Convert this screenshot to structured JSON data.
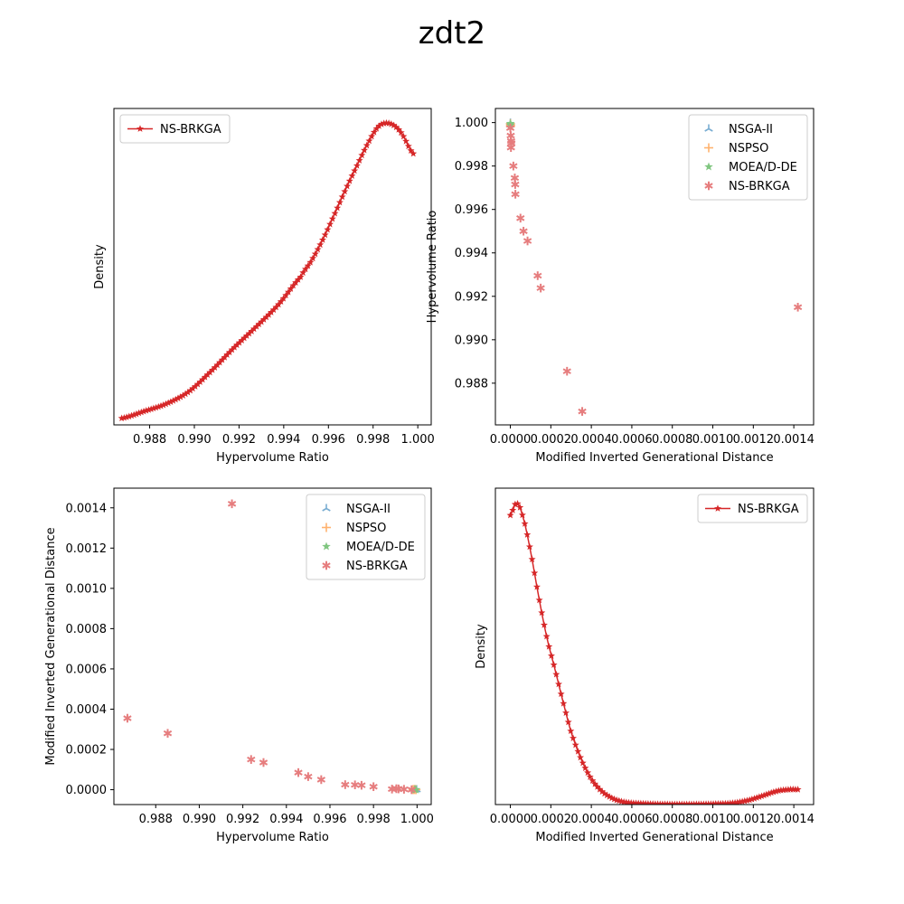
{
  "figure": {
    "title": "zdt2"
  },
  "colors": {
    "nsga2": "#1f77b4",
    "nspso": "#ff7f0e",
    "moead": "#2ca02c",
    "nsbrkga": "#d62728",
    "axis": "#000000",
    "legend_border": "#cccccc"
  },
  "chart_data": [
    {
      "type": "line",
      "panel": "top-left",
      "xlabel": "Hypervolume Ratio",
      "ylabel": "Density",
      "xlim": [
        0.9864,
        1.0006
      ],
      "ylim": [
        0,
        1.05
      ],
      "xticks": [
        0.988,
        0.99,
        0.992,
        0.994,
        0.996,
        0.998,
        1.0
      ],
      "xtick_labels": [
        "0.988",
        "0.990",
        "0.992",
        "0.994",
        "0.996",
        "0.998",
        "1.000"
      ],
      "show_yticks": false,
      "legend": {
        "loc": "upper left",
        "entries": [
          "NS-BRKGA"
        ]
      },
      "series": [
        {
          "name": "NS-BRKGA",
          "color": "#d62728",
          "marker": "*",
          "x": [
            0.98675,
            0.98775,
            0.98875,
            0.98975,
            0.99075,
            0.99175,
            0.99275,
            0.99375,
            0.99475,
            0.99525,
            0.99575,
            0.99625,
            0.99675,
            0.99725,
            0.99775,
            0.99825,
            0.99875,
            0.99925,
            0.9998
          ],
          "y": [
            0.022,
            0.045,
            0.07,
            0.11,
            0.178,
            0.254,
            0.324,
            0.398,
            0.49,
            0.546,
            0.615,
            0.695,
            0.778,
            0.856,
            0.932,
            0.991,
            1.0,
            0.97,
            0.9
          ]
        }
      ]
    },
    {
      "type": "scatter",
      "panel": "top-right",
      "xlabel": "Modified Inverted Generational Distance",
      "ylabel": "Hypervolume Ratio",
      "xlim": [
        -7.38e-05,
        0.0014977
      ],
      "ylim": [
        0.98608,
        1.00065
      ],
      "xticks": [
        0.0,
        0.0002,
        0.0004,
        0.0006,
        0.0008,
        0.001,
        0.0012,
        0.0014
      ],
      "xtick_labels": [
        "0.0000",
        "0.0002",
        "0.0004",
        "0.0006",
        "0.0008",
        "0.0010",
        "0.0012",
        "0.0014"
      ],
      "yticks": [
        0.988,
        0.99,
        0.992,
        0.994,
        0.996,
        0.998,
        1.0
      ],
      "ytick_labels": [
        "0.988",
        "0.990",
        "0.992",
        "0.994",
        "0.996",
        "0.998",
        "1.000"
      ],
      "legend": {
        "loc": "upper right",
        "entries": [
          "NSGA-II",
          "NSPSO",
          "MOEA/D-DE",
          "NS-BRKGA"
        ]
      },
      "series": [
        {
          "name": "NSGA-II",
          "color": "#1f77b4",
          "marker": "tri_up",
          "points": [
            [
              5e-07,
              0.99998
            ],
            [
              8e-07,
              0.99992
            ],
            [
              4e-07,
              0.9999
            ]
          ]
        },
        {
          "name": "NSPSO",
          "color": "#ff7f0e",
          "marker": "plus",
          "points": [
            [
              4e-07,
              0.99995
            ],
            [
              7e-07,
              0.99982
            ],
            [
              1e-06,
              0.99988
            ]
          ]
        },
        {
          "name": "MOEA/D-DE",
          "color": "#2ca02c",
          "marker": "star",
          "points": [
            [
              3e-07,
              0.99993
            ],
            [
              6e-07,
              0.99988
            ],
            [
              5e-07,
              0.99996
            ]
          ]
        },
        {
          "name": "NS-BRKGA",
          "color": "#d62728",
          "marker": "asterisk",
          "points": [
            [
              0.0,
              0.99975
            ],
            [
              2e-06,
              0.9994
            ],
            [
              4e-06,
              0.99915
            ],
            [
              3e-06,
              0.99885
            ],
            [
              5e-06,
              0.99905
            ],
            [
              1.5e-05,
              0.998
            ],
            [
              2.2e-05,
              0.99745
            ],
            [
              2.4e-05,
              0.99715
            ],
            [
              2.5e-05,
              0.9967
            ],
            [
              5e-05,
              0.9956
            ],
            [
              6.5e-05,
              0.995
            ],
            [
              8.5e-05,
              0.99455
            ],
            [
              0.000135,
              0.99295
            ],
            [
              0.00015,
              0.99238
            ],
            [
              0.00028,
              0.98855
            ],
            [
              0.000355,
              0.9867
            ],
            [
              0.00142,
              0.9915
            ]
          ]
        }
      ]
    },
    {
      "type": "scatter",
      "panel": "bottom-left",
      "xlabel": "Hypervolume Ratio",
      "ylabel": "Modified Inverted Generational Distance",
      "xlim": [
        0.98608,
        1.00065
      ],
      "ylim": [
        -7.38e-05,
        0.0014977
      ],
      "xticks": [
        0.988,
        0.99,
        0.992,
        0.994,
        0.996,
        0.998,
        1.0
      ],
      "xtick_labels": [
        "0.988",
        "0.990",
        "0.992",
        "0.994",
        "0.996",
        "0.998",
        "1.000"
      ],
      "yticks": [
        0.0,
        0.0002,
        0.0004,
        0.0006,
        0.0008,
        0.001,
        0.0012,
        0.0014
      ],
      "ytick_labels": [
        "0.0000",
        "0.0002",
        "0.0004",
        "0.0006",
        "0.0008",
        "0.0010",
        "0.0012",
        "0.0014"
      ],
      "legend": {
        "loc": "upper right",
        "entries": [
          "NSGA-II",
          "NSPSO",
          "MOEA/D-DE",
          "NS-BRKGA"
        ]
      },
      "series": [
        {
          "name": "NSGA-II",
          "color": "#1f77b4",
          "marker": "tri_up",
          "points": [
            [
              0.99998,
              5e-07
            ],
            [
              0.99992,
              8e-07
            ],
            [
              0.9999,
              4e-07
            ]
          ]
        },
        {
          "name": "NSPSO",
          "color": "#ff7f0e",
          "marker": "plus",
          "points": [
            [
              0.99995,
              4e-07
            ],
            [
              0.99982,
              7e-07
            ],
            [
              0.99988,
              1e-06
            ]
          ]
        },
        {
          "name": "MOEA/D-DE",
          "color": "#2ca02c",
          "marker": "star",
          "points": [
            [
              0.99993,
              3e-07
            ],
            [
              0.99988,
              6e-07
            ],
            [
              0.99996,
              5e-07
            ]
          ]
        },
        {
          "name": "NS-BRKGA",
          "color": "#d62728",
          "marker": "asterisk",
          "points": [
            [
              0.99975,
              0.0
            ],
            [
              0.9994,
              2e-06
            ],
            [
              0.99915,
              4e-06
            ],
            [
              0.99885,
              3e-06
            ],
            [
              0.99905,
              5e-06
            ],
            [
              0.998,
              1.5e-05
            ],
            [
              0.99745,
              2.2e-05
            ],
            [
              0.99715,
              2.4e-05
            ],
            [
              0.9967,
              2.5e-05
            ],
            [
              0.9956,
              5e-05
            ],
            [
              0.995,
              6.5e-05
            ],
            [
              0.99455,
              8.5e-05
            ],
            [
              0.99295,
              0.000135
            ],
            [
              0.99238,
              0.00015
            ],
            [
              0.98855,
              0.00028
            ],
            [
              0.9867,
              0.000355
            ],
            [
              0.9915,
              0.00142
            ]
          ]
        }
      ]
    },
    {
      "type": "line",
      "panel": "bottom-right",
      "xlabel": "Modified Inverted Generational Distance",
      "ylabel": "Density",
      "xlim": [
        -7.38e-05,
        0.0014977
      ],
      "ylim": [
        0,
        1.05
      ],
      "xticks": [
        0.0,
        0.0002,
        0.0004,
        0.0006,
        0.0008,
        0.001,
        0.0012,
        0.0014
      ],
      "xtick_labels": [
        "0.0000",
        "0.0002",
        "0.0004",
        "0.0006",
        "0.0008",
        "0.0010",
        "0.0012",
        "0.0014"
      ],
      "show_yticks": false,
      "legend": {
        "loc": "upper right",
        "entries": [
          "NS-BRKGA"
        ]
      },
      "series": [
        {
          "name": "NS-BRKGA",
          "color": "#d62728",
          "marker": "*",
          "x": [
            0.0,
            3e-05,
            6e-05,
            0.0001,
            0.00014,
            0.00018,
            0.00022,
            0.00026,
            0.0003,
            0.00035,
            0.0004,
            0.00045,
            0.0005,
            0.00055,
            0.0006,
            0.0007,
            0.0008,
            0.0009,
            0.001,
            0.0011,
            0.00118,
            0.00125,
            0.00132,
            0.00138,
            0.00142
          ],
          "y": [
            0.96,
            1.0,
            0.96,
            0.84,
            0.69,
            0.555,
            0.45,
            0.342,
            0.24,
            0.15,
            0.085,
            0.045,
            0.022,
            0.01,
            0.005,
            0.002,
            0.001,
            0.001,
            0.002,
            0.005,
            0.015,
            0.03,
            0.045,
            0.05,
            0.05
          ]
        }
      ]
    }
  ]
}
